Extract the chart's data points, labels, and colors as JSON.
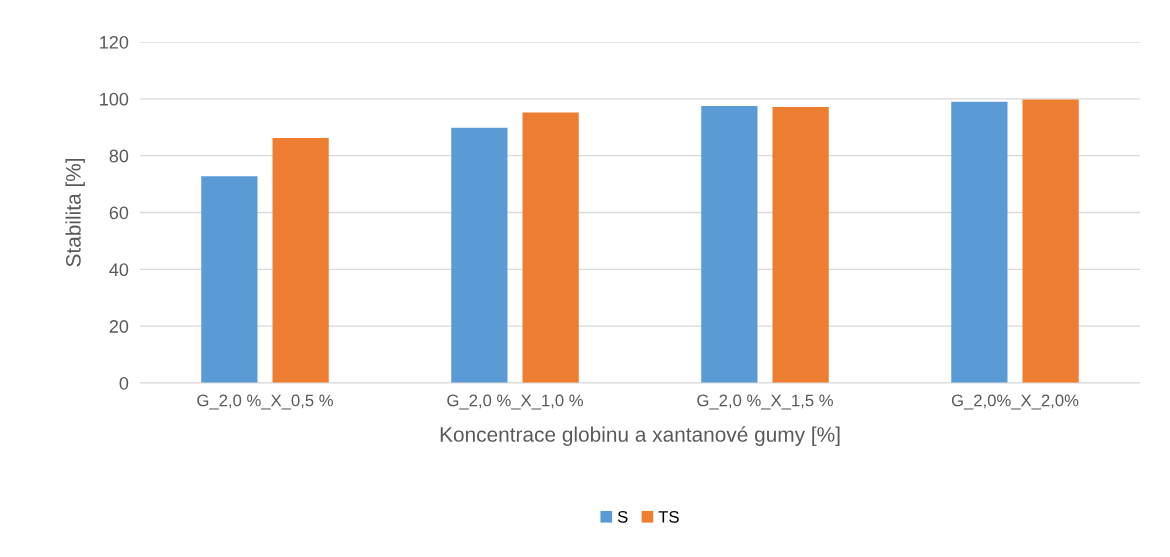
{
  "chart_data": {
    "type": "bar",
    "xlabel": "Koncentrace globinu a xantanové gumy [%]",
    "ylabel": "Stabilita [%]",
    "categories": [
      "G_2,0 %_X_0,5 %",
      "G_2,0 %_X_1,0 %",
      "G_2,0 %_X_1,5 %",
      "G_2,0%_X_2,0%"
    ],
    "series": [
      {
        "name": "S",
        "color": "#5b9bd5",
        "values": [
          72.8,
          89.8,
          97.5,
          99
        ]
      },
      {
        "name": "TS",
        "color": "#ed7d31",
        "values": [
          86.2,
          95.2,
          97.1,
          99.8
        ]
      }
    ],
    "ylim": [
      0,
      120
    ],
    "yticks": [
      0,
      20,
      40,
      60,
      80,
      100,
      120
    ],
    "grid": "y",
    "legend": "bottom"
  }
}
